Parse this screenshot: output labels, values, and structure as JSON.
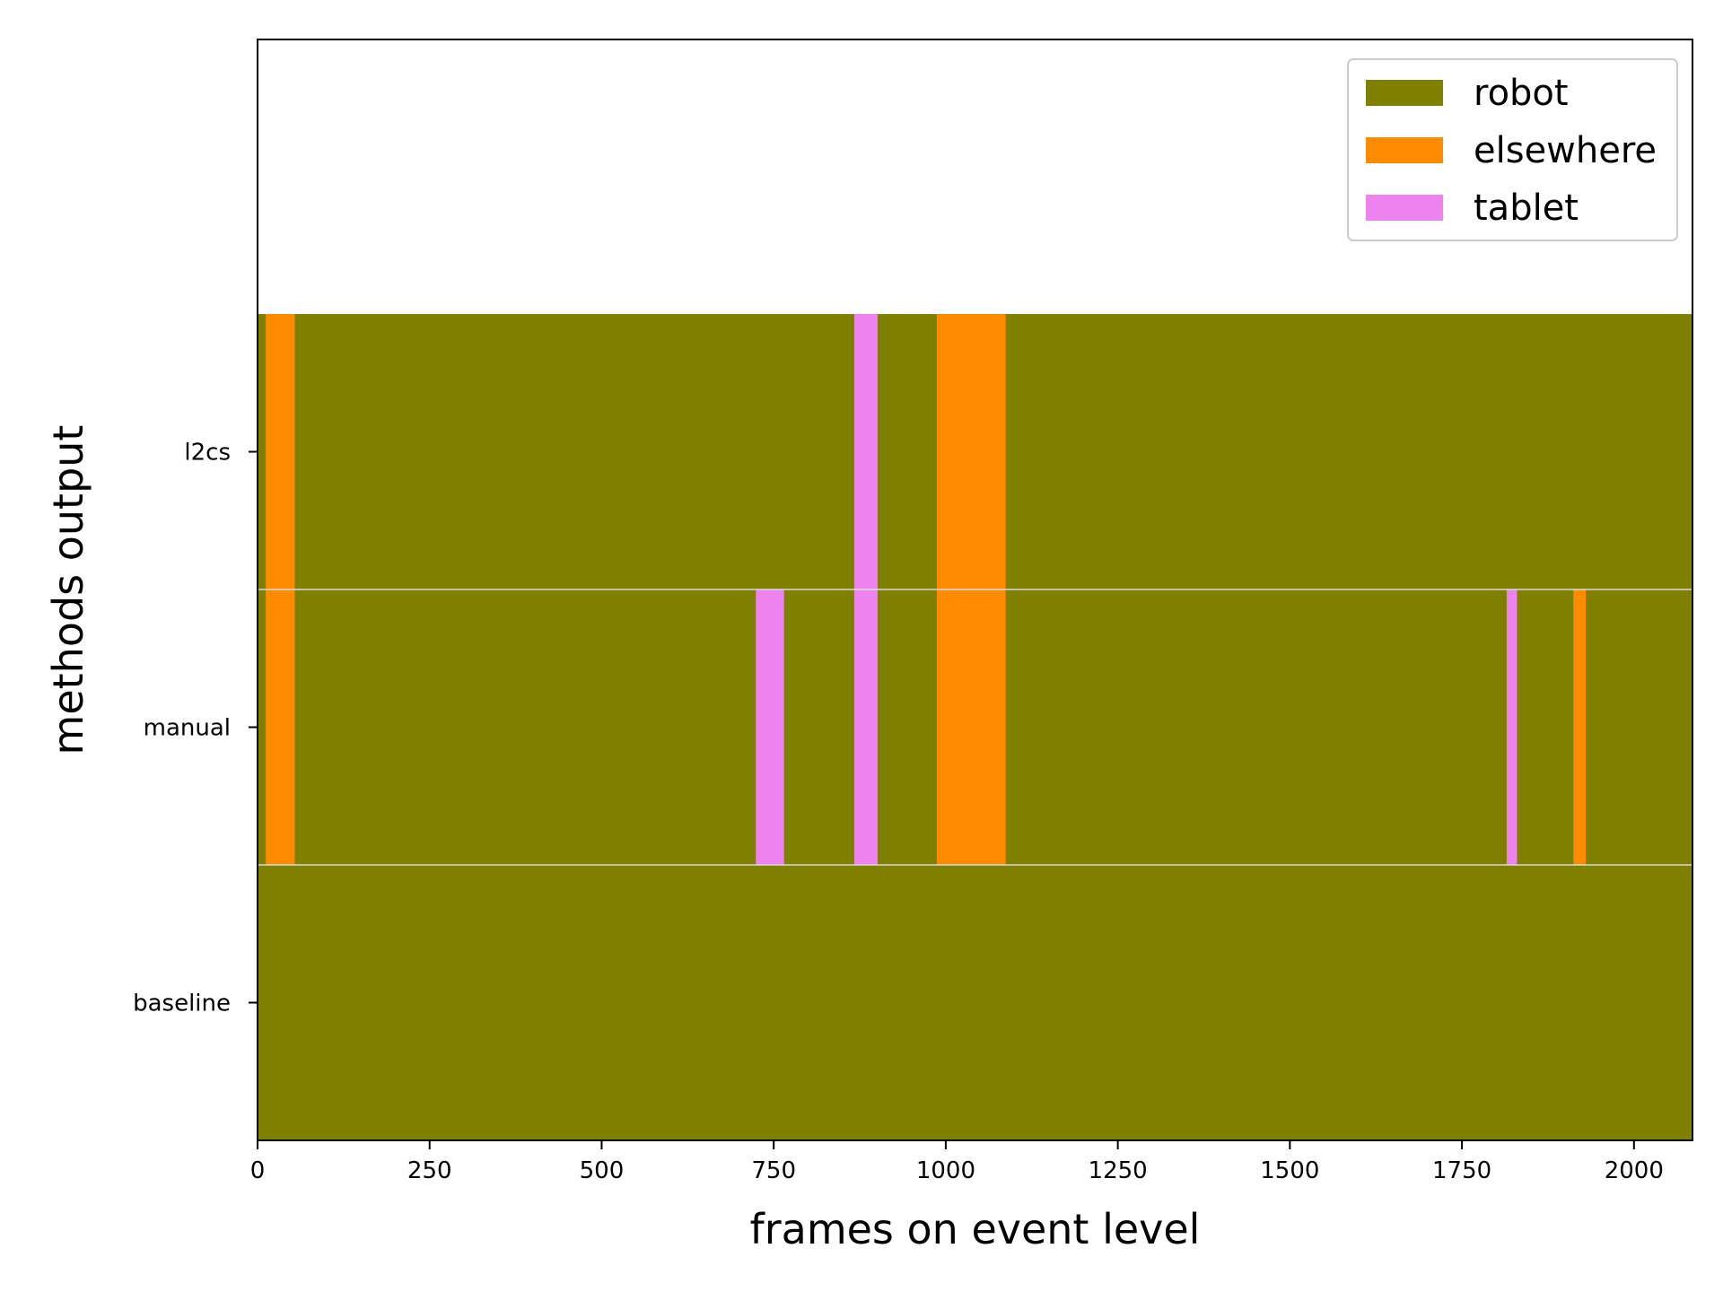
{
  "chart_data": {
    "type": "bar",
    "orientation": "horizontal-broken-bar",
    "xlabel": "frames on event level",
    "ylabel": "methods output",
    "xlim": [
      0,
      2085
    ],
    "x_ticks": [
      0,
      250,
      500,
      750,
      1000,
      1250,
      1500,
      1750,
      2000
    ],
    "rows": [
      "baseline",
      "manual",
      "l2cs"
    ],
    "legend_position": "top-right",
    "categories": [
      {
        "name": "robot",
        "color": "#808000"
      },
      {
        "name": "elsewhere",
        "color": "#ff8c00"
      },
      {
        "name": "tablet",
        "color": "#ee82ee"
      }
    ],
    "segments": {
      "baseline": [
        {
          "start": 0,
          "end": 2085,
          "label": "robot"
        }
      ],
      "manual": [
        {
          "start": 0,
          "end": 12,
          "label": "robot"
        },
        {
          "start": 12,
          "end": 54,
          "label": "elsewhere"
        },
        {
          "start": 54,
          "end": 724,
          "label": "robot"
        },
        {
          "start": 724,
          "end": 765,
          "label": "tablet"
        },
        {
          "start": 765,
          "end": 867,
          "label": "robot"
        },
        {
          "start": 867,
          "end": 901,
          "label": "tablet"
        },
        {
          "start": 901,
          "end": 987,
          "label": "robot"
        },
        {
          "start": 987,
          "end": 1087,
          "label": "elsewhere"
        },
        {
          "start": 1087,
          "end": 1815,
          "label": "robot"
        },
        {
          "start": 1815,
          "end": 1830,
          "label": "tablet"
        },
        {
          "start": 1830,
          "end": 1912,
          "label": "robot"
        },
        {
          "start": 1912,
          "end": 1930,
          "label": "elsewhere"
        },
        {
          "start": 1930,
          "end": 2085,
          "label": "robot"
        }
      ],
      "l2cs": [
        {
          "start": 0,
          "end": 12,
          "label": "robot"
        },
        {
          "start": 12,
          "end": 54,
          "label": "elsewhere"
        },
        {
          "start": 54,
          "end": 867,
          "label": "robot"
        },
        {
          "start": 867,
          "end": 901,
          "label": "tablet"
        },
        {
          "start": 901,
          "end": 987,
          "label": "robot"
        },
        {
          "start": 987,
          "end": 1087,
          "label": "elsewhere"
        },
        {
          "start": 1087,
          "end": 2085,
          "label": "robot"
        }
      ]
    }
  }
}
